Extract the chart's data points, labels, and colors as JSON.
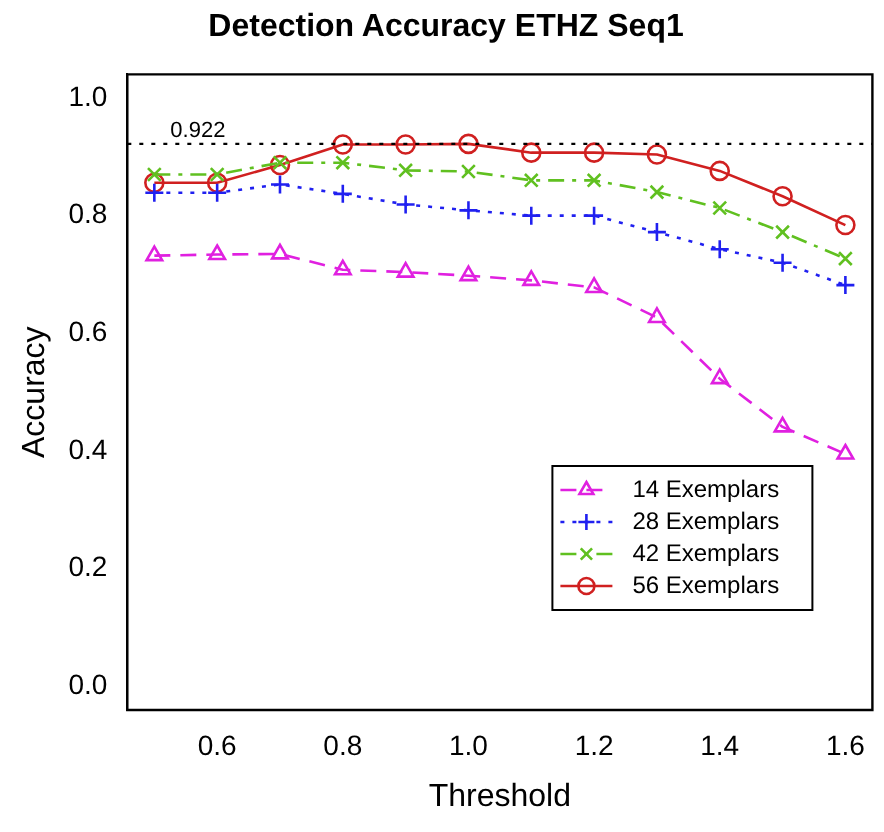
{
  "chart_data": {
    "type": "line",
    "title": "Detection Accuracy ETHZ Seq1",
    "xlabel": "Threshold",
    "ylabel": "Accuracy",
    "x": [
      0.5,
      0.6,
      0.7,
      0.8,
      0.9,
      1.0,
      1.1,
      1.2,
      1.3,
      1.4,
      1.5,
      1.6
    ],
    "xlim": [
      0.457,
      1.643
    ],
    "xticks": [
      0.6,
      0.8,
      {
        "value": 1,
        "label": "1.0"
      },
      1.2,
      1.4,
      1.6
    ],
    "ylim": [
      -0.04,
      1.04
    ],
    "yticks": [
      {
        "value": 0,
        "label": "0.0"
      },
      0.2,
      0.4,
      0.6,
      0.8,
      {
        "value": 1,
        "label": "1.0"
      }
    ],
    "grid": false,
    "legend": "bottom right",
    "ref_lines": [
      {
        "axis": "y",
        "value": 0.922,
        "label": "0.922",
        "color": "#000000",
        "line_style": "dotted"
      }
    ],
    "series": [
      {
        "name": "14 Exemplars",
        "color": "#e020e0",
        "marker": "triangle",
        "line_style": "dashed",
        "values": [
          0.732,
          0.734,
          0.735,
          0.708,
          0.704,
          0.698,
          0.69,
          0.678,
          0.627,
          0.523,
          0.441,
          0.395
        ]
      },
      {
        "name": "28 Exemplars",
        "color": "#2020f0",
        "marker": "cross",
        "line_style": "dotted",
        "values": [
          0.839,
          0.839,
          0.853,
          0.837,
          0.819,
          0.809,
          0.8,
          0.8,
          0.772,
          0.743,
          0.72,
          0.682
        ]
      },
      {
        "name": "42 Exemplars",
        "color": "#60c020",
        "marker": "x",
        "line_style": "dashdot",
        "values": [
          0.87,
          0.87,
          0.89,
          0.89,
          0.877,
          0.875,
          0.86,
          0.86,
          0.84,
          0.813,
          0.772,
          0.727
        ]
      },
      {
        "name": "56 Exemplars",
        "color": "#d02020",
        "marker": "circle",
        "line_style": "solid",
        "values": [
          0.856,
          0.856,
          0.886,
          0.921,
          0.921,
          0.922,
          0.907,
          0.907,
          0.904,
          0.876,
          0.833,
          0.784
        ]
      }
    ]
  }
}
